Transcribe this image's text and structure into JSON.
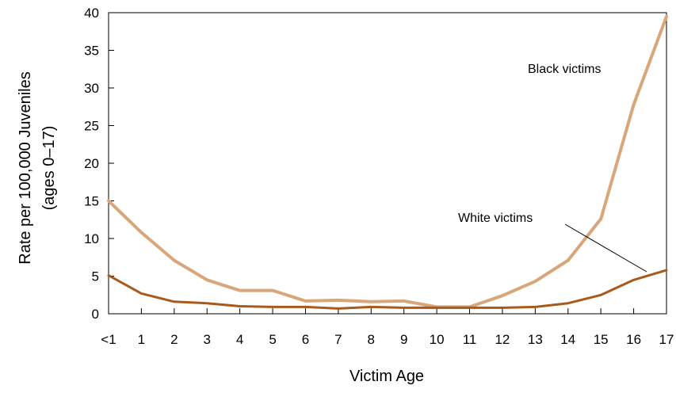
{
  "chart_data": {
    "type": "line",
    "title": "",
    "xlabel": "Victim Age",
    "ylabel": [
      "Rate per 100,000 Juveniles",
      "(ages 0–17)"
    ],
    "categories": [
      "<1",
      "1",
      "2",
      "3",
      "4",
      "5",
      "6",
      "7",
      "8",
      "9",
      "10",
      "11",
      "12",
      "13",
      "14",
      "15",
      "16",
      "17"
    ],
    "ylim": [
      0,
      40
    ],
    "yticks": [
      "0",
      "5",
      "10",
      "15",
      "20",
      "25",
      "30",
      "35",
      "40"
    ],
    "grid": false,
    "series": [
      {
        "name": "Black victims",
        "color": "#d9a679",
        "values": [
          15.0,
          10.8,
          7.1,
          4.5,
          3.1,
          3.1,
          1.7,
          1.8,
          1.6,
          1.7,
          0.9,
          0.9,
          2.4,
          4.3,
          7.1,
          12.6,
          27.8,
          39.5
        ]
      },
      {
        "name": "White victims",
        "color": "#a85a1c",
        "values": [
          5.1,
          2.7,
          1.6,
          1.4,
          1.0,
          0.9,
          0.9,
          0.7,
          0.9,
          0.8,
          0.8,
          0.8,
          0.8,
          0.9,
          1.4,
          2.5,
          4.5,
          5.8
        ]
      }
    ]
  }
}
